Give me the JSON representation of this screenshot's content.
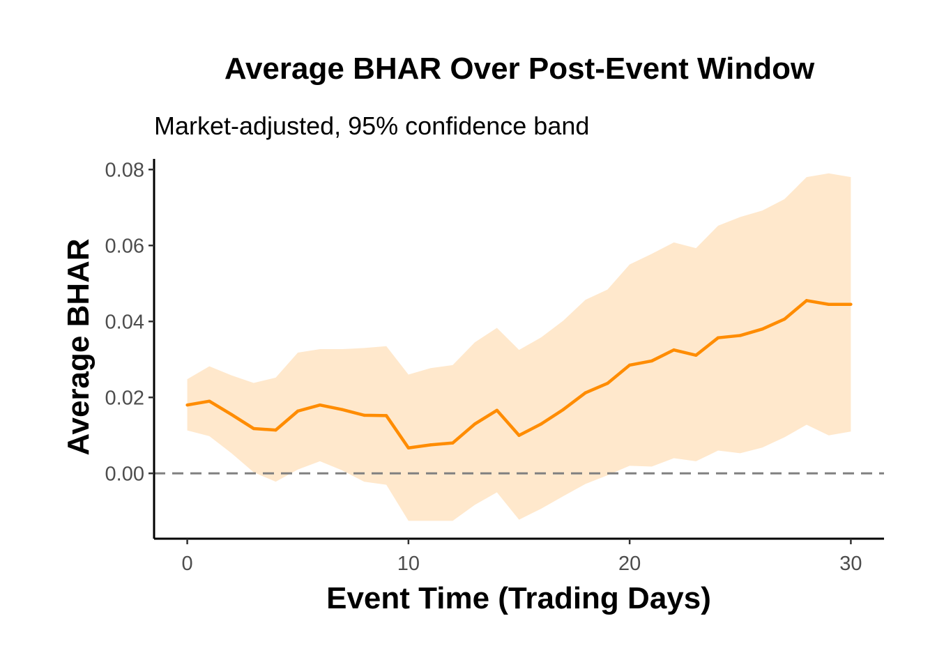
{
  "chart_data": {
    "type": "line",
    "title": "Average BHAR Over Post-Event Window",
    "subtitle": "Market-adjusted, 95% confidence band",
    "xlabel": "Event Time (Trading Days)",
    "ylabel": "Average BHAR",
    "xlim": [
      -1.5,
      31.5
    ],
    "ylim": [
      -0.0172,
      0.0828
    ],
    "xticks": [
      0,
      10,
      20,
      30
    ],
    "xtick_labels": [
      "0",
      "10",
      "20",
      "30"
    ],
    "yticks": [
      0.0,
      0.02,
      0.04,
      0.06,
      0.08
    ],
    "ytick_labels": [
      "0.00",
      "0.02",
      "0.04",
      "0.06",
      "0.08"
    ],
    "reference_line": {
      "y": 0.0,
      "style": "dashed",
      "color": "#808080"
    },
    "series": [
      {
        "name": "Average BHAR",
        "color": "#FF8C00",
        "band_color": "#FFE8CC",
        "x": [
          0,
          1,
          2,
          3,
          4,
          5,
          6,
          7,
          8,
          9,
          10,
          11,
          12,
          13,
          14,
          15,
          16,
          17,
          18,
          19,
          20,
          21,
          22,
          23,
          24,
          25,
          26,
          27,
          28,
          29,
          30
        ],
        "values": [
          0.018,
          0.019,
          0.0155,
          0.0118,
          0.0114,
          0.0164,
          0.018,
          0.0168,
          0.0153,
          0.0152,
          0.0067,
          0.0075,
          0.008,
          0.013,
          0.0166,
          0.01,
          0.013,
          0.0168,
          0.0212,
          0.0237,
          0.0285,
          0.0296,
          0.0325,
          0.0311,
          0.0357,
          0.0363,
          0.038,
          0.0406,
          0.0455,
          0.0445,
          0.0445
        ],
        "lower": [
          0.0113,
          0.0098,
          0.0053,
          0.0003,
          -0.0022,
          0.001,
          0.0032,
          0.0008,
          -0.0022,
          -0.003,
          -0.0125,
          -0.0125,
          -0.0125,
          -0.0083,
          -0.005,
          -0.0122,
          -0.0093,
          -0.006,
          -0.0028,
          -0.0005,
          0.002,
          0.0018,
          0.004,
          0.0032,
          0.006,
          0.0053,
          0.0068,
          0.0095,
          0.0128,
          0.01,
          0.011
        ],
        "upper": [
          0.0248,
          0.0282,
          0.0258,
          0.0238,
          0.0252,
          0.0318,
          0.0327,
          0.0327,
          0.033,
          0.0335,
          0.026,
          0.0277,
          0.0285,
          0.0345,
          0.0383,
          0.0325,
          0.0358,
          0.0402,
          0.0457,
          0.0484,
          0.055,
          0.0578,
          0.0608,
          0.0593,
          0.0652,
          0.0675,
          0.0692,
          0.0722,
          0.078,
          0.079,
          0.078
        ]
      }
    ],
    "grid": false,
    "legend": "none"
  }
}
